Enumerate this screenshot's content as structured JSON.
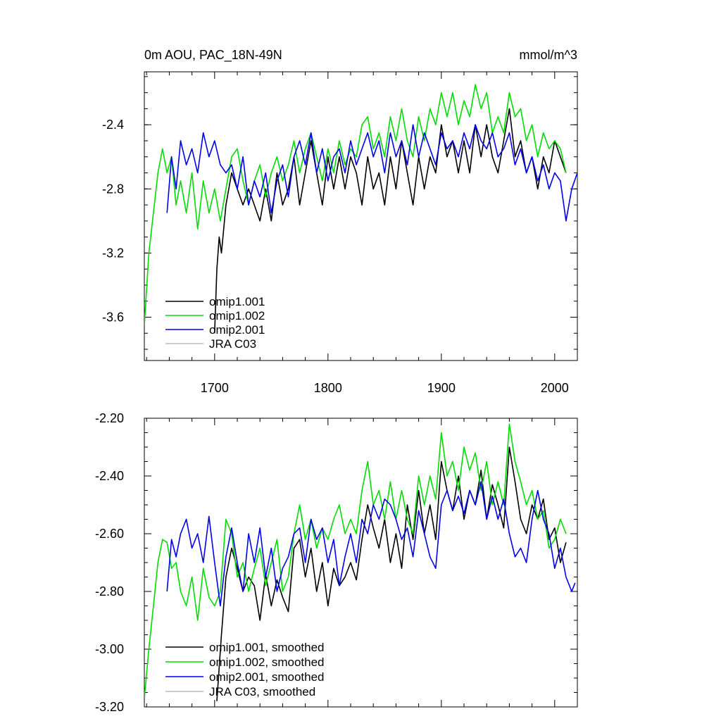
{
  "chart_data": [
    {
      "type": "line",
      "title": "0m AOU, PAC_18N-49N",
      "units": "mmol/m^3",
      "xlim": [
        1638,
        2020
      ],
      "ylim": [
        -3.87,
        -2.07
      ],
      "x_ticks": [
        1700,
        1800,
        1900,
        2000
      ],
      "x_tick_labels": [
        "1700",
        "1800",
        "1900",
        "2000"
      ],
      "y_ticks": [
        -3.6,
        -3.2,
        -2.8,
        -2.4
      ],
      "y_tick_labels": [
        "-3.6",
        "-3.2",
        "-2.8",
        "-2.4"
      ],
      "legend_position": "bottom-left",
      "series": [
        {
          "name": "omip1.001",
          "color": "#000000",
          "x": [
            1700,
            1702,
            1704,
            1706,
            1710,
            1715,
            1720,
            1725,
            1730,
            1735,
            1740,
            1745,
            1750,
            1755,
            1760,
            1765,
            1770,
            1775,
            1780,
            1785,
            1790,
            1795,
            1800,
            1805,
            1810,
            1815,
            1820,
            1825,
            1830,
            1835,
            1840,
            1845,
            1850,
            1855,
            1860,
            1865,
            1870,
            1875,
            1880,
            1885,
            1890,
            1895,
            1900,
            1905,
            1910,
            1915,
            1920,
            1925,
            1930,
            1935,
            1940,
            1945,
            1950,
            1955,
            1960,
            1965,
            1970,
            1975,
            1980,
            1985,
            1990,
            1995,
            2000,
            2005,
            2010
          ],
          "values": [
            -3.7,
            -3.3,
            -3.1,
            -3.2,
            -2.9,
            -2.7,
            -2.8,
            -2.9,
            -2.8,
            -2.9,
            -3.0,
            -2.8,
            -3.0,
            -2.7,
            -2.9,
            -2.8,
            -2.6,
            -2.9,
            -2.7,
            -2.5,
            -2.7,
            -2.9,
            -2.6,
            -2.8,
            -2.6,
            -2.8,
            -2.6,
            -2.7,
            -2.9,
            -2.6,
            -2.8,
            -2.7,
            -2.9,
            -2.6,
            -2.8,
            -2.5,
            -2.7,
            -2.9,
            -2.6,
            -2.8,
            -2.6,
            -2.7,
            -2.4,
            -2.6,
            -2.5,
            -2.7,
            -2.5,
            -2.7,
            -2.4,
            -2.6,
            -2.4,
            -2.6,
            -2.7,
            -2.5,
            -2.3,
            -2.6,
            -2.5,
            -2.7,
            -2.6,
            -2.8,
            -2.6,
            -2.7,
            -2.5,
            -2.6,
            -2.7
          ]
        },
        {
          "name": "omip1.002",
          "color": "#00dd00",
          "x": [
            1638,
            1642,
            1646,
            1650,
            1654,
            1658,
            1662,
            1666,
            1670,
            1675,
            1680,
            1685,
            1690,
            1695,
            1700,
            1705,
            1710,
            1715,
            1720,
            1725,
            1730,
            1735,
            1740,
            1745,
            1750,
            1755,
            1760,
            1765,
            1770,
            1775,
            1780,
            1785,
            1790,
            1795,
            1800,
            1805,
            1810,
            1815,
            1820,
            1825,
            1830,
            1835,
            1840,
            1845,
            1850,
            1855,
            1860,
            1865,
            1870,
            1875,
            1880,
            1885,
            1890,
            1895,
            1900,
            1905,
            1910,
            1915,
            1920,
            1925,
            1930,
            1935,
            1940,
            1945,
            1950,
            1955,
            1960,
            1965,
            1970,
            1975,
            1980,
            1985,
            1990,
            1995,
            2000,
            2005,
            2010
          ],
          "values": [
            -3.65,
            -3.2,
            -2.95,
            -2.7,
            -2.55,
            -2.7,
            -2.6,
            -2.9,
            -2.75,
            -2.95,
            -2.7,
            -3.05,
            -2.75,
            -2.95,
            -2.8,
            -3.0,
            -2.8,
            -2.6,
            -2.55,
            -2.75,
            -2.9,
            -2.75,
            -2.65,
            -2.85,
            -2.7,
            -2.6,
            -2.75,
            -2.65,
            -2.5,
            -2.7,
            -2.55,
            -2.45,
            -2.6,
            -2.75,
            -2.55,
            -2.7,
            -2.5,
            -2.65,
            -2.55,
            -2.6,
            -2.4,
            -2.35,
            -2.55,
            -2.45,
            -2.6,
            -2.35,
            -2.5,
            -2.3,
            -2.5,
            -2.6,
            -2.35,
            -2.5,
            -2.3,
            -2.4,
            -2.2,
            -2.35,
            -2.2,
            -2.4,
            -2.25,
            -2.35,
            -2.15,
            -2.3,
            -2.2,
            -2.45,
            -2.35,
            -2.45,
            -2.2,
            -2.35,
            -2.3,
            -2.5,
            -2.4,
            -2.6,
            -2.45,
            -2.55,
            -2.5,
            -2.55,
            -2.7
          ]
        },
        {
          "name": "omip2.001",
          "color": "#0000ee",
          "x": [
            1658,
            1662,
            1666,
            1670,
            1675,
            1680,
            1685,
            1690,
            1695,
            1700,
            1705,
            1710,
            1715,
            1720,
            1725,
            1730,
            1735,
            1740,
            1745,
            1750,
            1755,
            1760,
            1765,
            1770,
            1775,
            1780,
            1785,
            1790,
            1795,
            1800,
            1805,
            1810,
            1815,
            1820,
            1825,
            1830,
            1835,
            1840,
            1845,
            1850,
            1855,
            1860,
            1865,
            1870,
            1875,
            1880,
            1885,
            1890,
            1895,
            1900,
            1905,
            1910,
            1915,
            1920,
            1925,
            1930,
            1935,
            1940,
            1945,
            1950,
            1955,
            1960,
            1965,
            1970,
            1975,
            1980,
            1985,
            1990,
            1995,
            2000,
            2005,
            2010,
            2015,
            2020
          ],
          "values": [
            -2.95,
            -2.6,
            -2.8,
            -2.5,
            -2.65,
            -2.55,
            -2.7,
            -2.45,
            -2.6,
            -2.5,
            -2.65,
            -2.7,
            -2.65,
            -2.8,
            -2.6,
            -2.9,
            -2.75,
            -2.85,
            -2.7,
            -2.95,
            -2.75,
            -2.65,
            -2.85,
            -2.6,
            -2.5,
            -2.65,
            -2.45,
            -2.7,
            -2.55,
            -2.75,
            -2.6,
            -2.55,
            -2.7,
            -2.5,
            -2.65,
            -2.55,
            -2.45,
            -2.6,
            -2.5,
            -2.7,
            -2.45,
            -2.6,
            -2.5,
            -2.65,
            -2.4,
            -2.6,
            -2.45,
            -2.55,
            -2.65,
            -2.45,
            -2.55,
            -2.5,
            -2.6,
            -2.45,
            -2.55,
            -2.4,
            -2.5,
            -2.55,
            -2.45,
            -2.6,
            -2.55,
            -2.45,
            -2.65,
            -2.55,
            -2.7,
            -2.6,
            -2.75,
            -2.65,
            -2.8,
            -2.7,
            -2.75,
            -3.0,
            -2.8,
            -2.7
          ]
        },
        {
          "name": "JRA C03",
          "color": "#bbbbbb",
          "x": [],
          "values": []
        }
      ]
    },
    {
      "type": "line",
      "title": "",
      "units": "",
      "xlim": [
        1638,
        2020
      ],
      "ylim": [
        -3.2,
        -2.2
      ],
      "x_ticks": [
        1700,
        1800,
        1900,
        2000
      ],
      "x_tick_labels": [],
      "y_ticks": [
        -3.2,
        -3.0,
        -2.8,
        -2.6,
        -2.4,
        -2.2
      ],
      "y_tick_labels": [
        "-3.20",
        "-3.00",
        "-2.80",
        "-2.60",
        "-2.40",
        "-2.20"
      ],
      "legend_position": "bottom-left",
      "series": [
        {
          "name": "omip1.001, smoothed",
          "color": "#000000",
          "x": [
            1702,
            1706,
            1710,
            1715,
            1720,
            1725,
            1730,
            1735,
            1740,
            1745,
            1750,
            1755,
            1760,
            1765,
            1770,
            1775,
            1780,
            1785,
            1790,
            1795,
            1800,
            1805,
            1810,
            1815,
            1820,
            1825,
            1830,
            1835,
            1840,
            1845,
            1850,
            1855,
            1860,
            1865,
            1870,
            1875,
            1880,
            1885,
            1890,
            1895,
            1900,
            1905,
            1910,
            1915,
            1920,
            1925,
            1930,
            1935,
            1940,
            1945,
            1950,
            1955,
            1960,
            1965,
            1970,
            1975,
            1980,
            1985,
            1990,
            1995,
            2000,
            2005,
            2010
          ],
          "values": [
            -3.18,
            -2.95,
            -2.75,
            -2.65,
            -2.72,
            -2.8,
            -2.75,
            -2.78,
            -2.9,
            -2.74,
            -2.85,
            -2.76,
            -2.82,
            -2.87,
            -2.65,
            -2.62,
            -2.75,
            -2.65,
            -2.8,
            -2.7,
            -2.85,
            -2.72,
            -2.78,
            -2.75,
            -2.7,
            -2.76,
            -2.62,
            -2.5,
            -2.58,
            -2.65,
            -2.55,
            -2.7,
            -2.6,
            -2.72,
            -2.5,
            -2.62,
            -2.45,
            -2.6,
            -2.5,
            -2.62,
            -2.35,
            -2.45,
            -2.52,
            -2.4,
            -2.55,
            -2.45,
            -2.5,
            -2.38,
            -2.55,
            -2.43,
            -2.5,
            -2.58,
            -2.3,
            -2.42,
            -2.55,
            -2.6,
            -2.5,
            -2.55,
            -2.48,
            -2.62,
            -2.58,
            -2.7,
            -2.63
          ]
        },
        {
          "name": "omip1.002, smoothed",
          "color": "#00dd00",
          "x": [
            1638,
            1642,
            1646,
            1650,
            1654,
            1658,
            1662,
            1666,
            1670,
            1675,
            1680,
            1685,
            1690,
            1695,
            1700,
            1705,
            1710,
            1715,
            1720,
            1725,
            1730,
            1735,
            1740,
            1745,
            1750,
            1755,
            1760,
            1765,
            1770,
            1775,
            1780,
            1785,
            1790,
            1795,
            1800,
            1805,
            1810,
            1815,
            1820,
            1825,
            1830,
            1835,
            1840,
            1845,
            1850,
            1855,
            1860,
            1865,
            1870,
            1875,
            1880,
            1885,
            1890,
            1895,
            1900,
            1905,
            1910,
            1915,
            1920,
            1925,
            1930,
            1935,
            1940,
            1945,
            1950,
            1955,
            1960,
            1965,
            1970,
            1975,
            1980,
            1985,
            1990,
            1995,
            2000,
            2005,
            2010
          ],
          "values": [
            -3.17,
            -3.0,
            -2.85,
            -2.7,
            -2.62,
            -2.63,
            -2.72,
            -2.7,
            -2.8,
            -2.85,
            -2.75,
            -2.9,
            -2.72,
            -2.82,
            -2.85,
            -2.8,
            -2.55,
            -2.6,
            -2.75,
            -2.7,
            -2.8,
            -2.72,
            -2.65,
            -2.78,
            -2.7,
            -2.62,
            -2.8,
            -2.75,
            -2.6,
            -2.5,
            -2.62,
            -2.55,
            -2.65,
            -2.58,
            -2.62,
            -2.55,
            -2.5,
            -2.6,
            -2.55,
            -2.6,
            -2.45,
            -2.35,
            -2.5,
            -2.45,
            -2.55,
            -2.42,
            -2.55,
            -2.45,
            -2.55,
            -2.6,
            -2.4,
            -2.5,
            -2.4,
            -2.48,
            -2.25,
            -2.4,
            -2.35,
            -2.45,
            -2.3,
            -2.38,
            -2.32,
            -2.45,
            -2.35,
            -2.5,
            -2.42,
            -2.5,
            -2.22,
            -2.35,
            -2.42,
            -2.5,
            -2.45,
            -2.55,
            -2.52,
            -2.65,
            -2.62,
            -2.55,
            -2.6
          ]
        },
        {
          "name": "omip2.001, smoothed",
          "color": "#0000ee",
          "x": [
            1658,
            1662,
            1666,
            1670,
            1675,
            1680,
            1685,
            1690,
            1695,
            1700,
            1705,
            1710,
            1715,
            1720,
            1725,
            1730,
            1735,
            1740,
            1745,
            1750,
            1755,
            1760,
            1765,
            1770,
            1775,
            1780,
            1785,
            1790,
            1795,
            1800,
            1805,
            1810,
            1815,
            1820,
            1825,
            1830,
            1835,
            1840,
            1845,
            1850,
            1855,
            1860,
            1865,
            1870,
            1875,
            1880,
            1885,
            1890,
            1895,
            1900,
            1905,
            1910,
            1915,
            1920,
            1925,
            1930,
            1935,
            1940,
            1945,
            1950,
            1955,
            1960,
            1965,
            1970,
            1975,
            1980,
            1985,
            1990,
            1995,
            2000,
            2005,
            2010,
            2015,
            2018
          ],
          "values": [
            -2.8,
            -2.62,
            -2.68,
            -2.6,
            -2.55,
            -2.65,
            -2.6,
            -2.7,
            -2.54,
            -2.7,
            -2.85,
            -2.68,
            -2.58,
            -2.7,
            -2.8,
            -2.6,
            -2.7,
            -2.58,
            -2.75,
            -2.65,
            -2.8,
            -2.72,
            -2.68,
            -2.6,
            -2.58,
            -2.7,
            -2.55,
            -2.62,
            -2.58,
            -2.7,
            -2.62,
            -2.78,
            -2.68,
            -2.6,
            -2.7,
            -2.55,
            -2.6,
            -2.5,
            -2.55,
            -2.48,
            -2.5,
            -2.55,
            -2.62,
            -2.58,
            -2.68,
            -2.52,
            -2.6,
            -2.68,
            -2.72,
            -2.5,
            -2.45,
            -2.52,
            -2.47,
            -2.53,
            -2.45,
            -2.5,
            -2.42,
            -2.55,
            -2.47,
            -2.55,
            -2.48,
            -2.6,
            -2.68,
            -2.65,
            -2.7,
            -2.55,
            -2.45,
            -2.55,
            -2.6,
            -2.72,
            -2.65,
            -2.75,
            -2.8,
            -2.77
          ]
        },
        {
          "name": "JRA C03, smoothed",
          "color": "#bbbbbb",
          "x": [],
          "values": []
        }
      ]
    }
  ]
}
